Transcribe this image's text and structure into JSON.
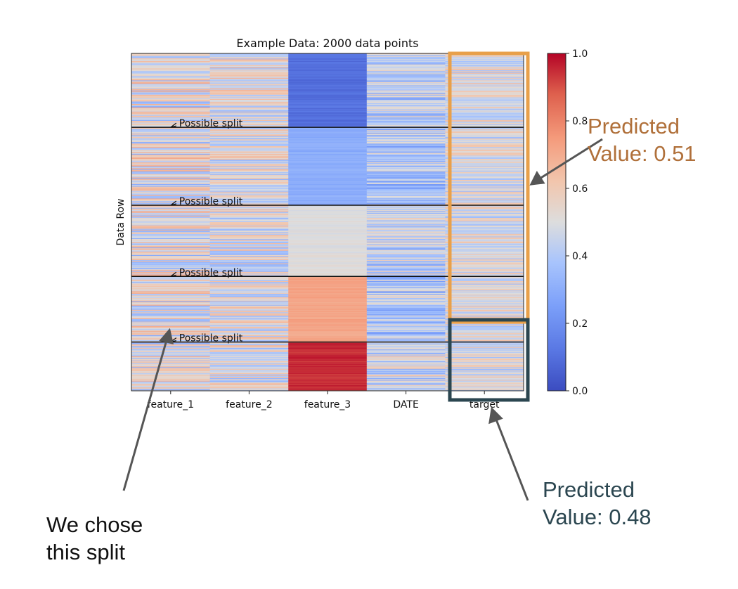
{
  "colors": {
    "colormap": "coolwarm",
    "cmap_low": "#3b4cc0",
    "cmap_mid": "#dddddd",
    "cmap_high": "#b40426",
    "highlight_orange": "#e8a04a",
    "highlight_slate": "#2b4650",
    "orange_text": "#b0703a",
    "slate_text": "#2b4650",
    "arrow_gray": "#555555",
    "split_line": "#111111"
  },
  "chart_data": {
    "type": "heatmap",
    "title": "Example Data: 2000 data points",
    "xlabel": "",
    "ylabel": "Data Row",
    "x_categories": [
      "feature_1",
      "feature_2",
      "feature_3",
      "DATE",
      "target"
    ],
    "n_rows": 2000,
    "colorbar": {
      "vmin": 0.0,
      "vmax": 1.0,
      "ticks": [
        0.0,
        0.2,
        0.4,
        0.6,
        0.8,
        1.0
      ],
      "tick_labels": [
        "0.0",
        "0.2",
        "0.4",
        "0.6",
        "0.8",
        "1.0"
      ]
    },
    "row_blocks": [
      {
        "rows": [
          0,
          438
        ],
        "feature_3": 0.1,
        "DATE": 0.42
      },
      {
        "rows": [
          438,
          900
        ],
        "feature_3": 0.3,
        "DATE": 0.4
      },
      {
        "rows": [
          900,
          1322
        ],
        "feature_3": 0.5,
        "DATE": 0.45
      },
      {
        "rows": [
          1322,
          1711
        ],
        "feature_3": 0.72,
        "DATE": 0.4
      },
      {
        "rows": [
          1711,
          2000
        ],
        "feature_3": 0.95,
        "DATE": 0.45
      }
    ],
    "split_rows": [
      438,
      900,
      1322,
      1711
    ],
    "annotations": [
      {
        "text": "Possible split",
        "row": 438
      },
      {
        "text": "Possible split",
        "row": 900
      },
      {
        "text": "Possible split",
        "row": 1322
      },
      {
        "text": "Possible split",
        "row": 1711
      }
    ],
    "highlights": [
      {
        "column": "target",
        "rows": [
          0,
          1711
        ],
        "predicted_value": 0.51
      },
      {
        "column": "target",
        "rows": [
          1711,
          2000
        ],
        "predicted_value": 0.48
      }
    ]
  },
  "notes": {
    "predicted_upper": [
      "Predicted",
      "Value: 0.51"
    ],
    "predicted_lower": [
      "Predicted",
      "Value: 0.48"
    ],
    "chose": [
      "We chose",
      "this split"
    ]
  }
}
